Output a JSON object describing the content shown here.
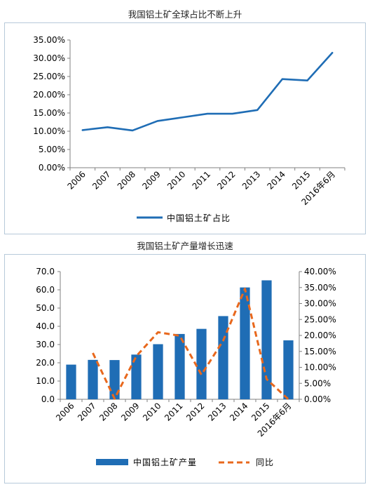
{
  "chart_data": [
    {
      "type": "line",
      "title": "我国铝土矿全球占比不断上升",
      "categories": [
        "2006",
        "2007",
        "2008",
        "2009",
        "2010",
        "2011",
        "2012",
        "2013",
        "2014",
        "2015",
        "2016年6月"
      ],
      "series": [
        {
          "name": "中国铝土矿占比",
          "values": [
            10.3,
            11.1,
            10.2,
            12.8,
            13.8,
            14.8,
            14.8,
            15.8,
            24.3,
            23.9,
            31.5
          ],
          "color": "#1f6db5"
        }
      ],
      "ylim": [
        0,
        35
      ],
      "yticks": [
        "0.00%",
        "5.00%",
        "10.00%",
        "15.00%",
        "20.00%",
        "25.00%",
        "30.00%",
        "35.00%"
      ],
      "grid": false,
      "legend": "bottom"
    },
    {
      "type": "bar",
      "title": "我国铝土矿产量增长迅速",
      "categories": [
        "2006",
        "2007",
        "2008",
        "2009",
        "2010",
        "2011",
        "2012",
        "2013",
        "2014",
        "2015",
        "2016年6月"
      ],
      "series": [
        {
          "name": "中国铝土矿产量",
          "type": "bar",
          "axis": "left",
          "values": [
            19.0,
            21.6,
            21.5,
            24.5,
            30.2,
            35.8,
            38.6,
            45.6,
            61.3,
            65.2,
            32.3
          ],
          "color": "#1f6db5"
        },
        {
          "name": "同比",
          "type": "line",
          "axis": "right",
          "style": "dashed",
          "values": [
            null,
            14.5,
            0.2,
            13.5,
            21.0,
            19.9,
            7.7,
            18.4,
            34.6,
            6.3,
            0.0
          ],
          "color": "#e8681d"
        }
      ],
      "ylim_left": [
        0,
        70
      ],
      "ylim_right": [
        0,
        40
      ],
      "yticks_left": [
        "0.0",
        "10.0",
        "20.0",
        "30.0",
        "40.0",
        "50.0",
        "60.0",
        "70.0"
      ],
      "yticks_right": [
        "0.00%",
        "5.00%",
        "10.00%",
        "15.00%",
        "20.00%",
        "25.00%",
        "30.00%",
        "35.00%",
        "40.00%"
      ],
      "grid": false,
      "legend": "bottom"
    }
  ]
}
